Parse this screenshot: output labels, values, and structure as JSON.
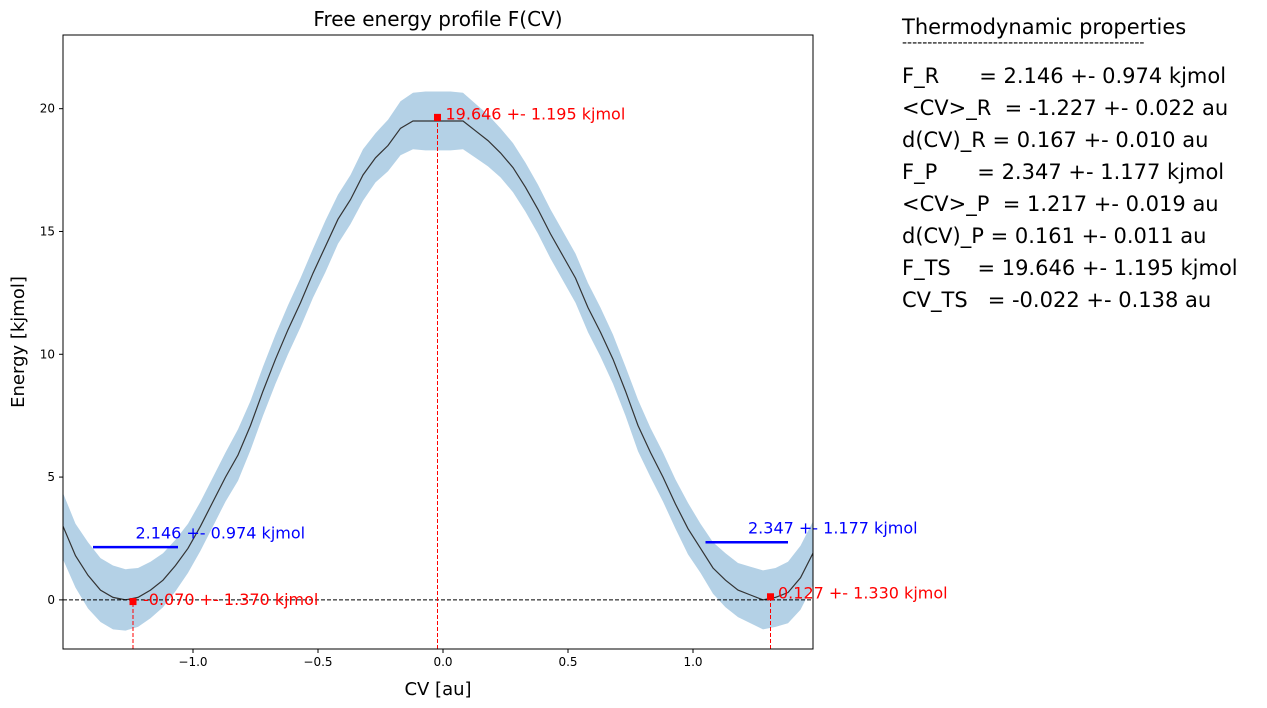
{
  "chart_data": {
    "type": "line",
    "title": "Free energy profile F(CV)",
    "xlabel": "CV [au]",
    "ylabel": "Energy [kjmol]",
    "xlim": [
      -1.52,
      1.48
    ],
    "ylim": [
      -2.0,
      23.0
    ],
    "xticks": [
      -1.0,
      -0.5,
      0.0,
      0.5,
      1.0
    ],
    "xtick_labels": [
      "−1.0",
      "−0.5",
      "0.0",
      "0.5",
      "1.0"
    ],
    "yticks": [
      0,
      5,
      10,
      15,
      20
    ],
    "ytick_labels": [
      "0",
      "5",
      "10",
      "15",
      "20"
    ],
    "grid": false,
    "series": [
      {
        "name": "F(CV)",
        "color": "#333333",
        "x": [
          -1.52,
          -1.47,
          -1.42,
          -1.37,
          -1.32,
          -1.27,
          -1.22,
          -1.17,
          -1.12,
          -1.07,
          -1.02,
          -0.97,
          -0.92,
          -0.87,
          -0.82,
          -0.77,
          -0.72,
          -0.67,
          -0.62,
          -0.57,
          -0.52,
          -0.47,
          -0.42,
          -0.37,
          -0.32,
          -0.27,
          -0.22,
          -0.17,
          -0.12,
          -0.07,
          -0.02,
          0.03,
          0.08,
          0.13,
          0.18,
          0.23,
          0.28,
          0.33,
          0.38,
          0.43,
          0.48,
          0.53,
          0.58,
          0.63,
          0.68,
          0.73,
          0.78,
          0.83,
          0.88,
          0.93,
          0.98,
          1.03,
          1.08,
          1.13,
          1.18,
          1.23,
          1.28,
          1.33,
          1.38,
          1.43,
          1.48
        ],
        "y": [
          3.0,
          1.8,
          1.0,
          0.4,
          0.1,
          0.0,
          0.1,
          0.4,
          0.8,
          1.4,
          2.1,
          3.0,
          4.0,
          5.0,
          5.9,
          7.1,
          8.5,
          9.8,
          11.0,
          12.1,
          13.3,
          14.4,
          15.5,
          16.3,
          17.3,
          18.0,
          18.5,
          19.2,
          19.5,
          19.5,
          19.5,
          19.5,
          19.5,
          19.1,
          18.7,
          18.2,
          17.6,
          16.8,
          15.9,
          14.9,
          14.0,
          13.1,
          11.9,
          10.9,
          9.8,
          8.5,
          7.1,
          6.0,
          5.0,
          3.9,
          2.9,
          2.1,
          1.3,
          0.8,
          0.4,
          0.2,
          0.0,
          0.1,
          0.3,
          0.9,
          1.9
        ],
        "band_halfwidth": [
          1.35,
          1.3,
          1.35,
          1.3,
          1.3,
          1.25,
          1.2,
          1.15,
          1.1,
          1.05,
          1.0,
          1.0,
          1.0,
          1.0,
          1.05,
          1.0,
          1.0,
          1.0,
          1.0,
          1.0,
          1.0,
          1.05,
          1.0,
          1.0,
          1.05,
          1.0,
          1.05,
          1.1,
          1.15,
          1.2,
          1.2,
          1.2,
          1.15,
          1.1,
          1.05,
          1.0,
          1.0,
          1.0,
          1.0,
          1.0,
          1.0,
          1.0,
          1.0,
          1.0,
          1.0,
          1.0,
          1.05,
          1.0,
          1.0,
          1.0,
          1.05,
          1.0,
          1.05,
          1.1,
          1.1,
          1.15,
          1.2,
          1.2,
          1.25,
          1.3,
          1.3
        ],
        "band_color": "#b4d1e6"
      }
    ],
    "reference_lines": [
      {
        "name": "zero-baseline",
        "orientation": "horizontal",
        "y": 0.0,
        "color": "#000000",
        "style": "dashed"
      },
      {
        "name": "reactant-minimum-vline",
        "orientation": "vertical",
        "x": -1.24,
        "y_to": 0.0,
        "color": "#ff0000",
        "style": "dashed"
      },
      {
        "name": "transition-state-vline",
        "orientation": "vertical",
        "x": -0.022,
        "y_to": 19.646,
        "color": "#ff0000",
        "style": "dashed"
      },
      {
        "name": "product-minimum-vline",
        "orientation": "vertical",
        "x": 1.31,
        "y_to": 0.127,
        "color": "#ff0000",
        "style": "dashed"
      }
    ],
    "free_energy_levels": [
      {
        "name": "F_R-level",
        "x_range": [
          -1.4,
          -1.06
        ],
        "y": 2.146,
        "color": "#0000ff",
        "label": "2.146 +- 0.974 kjmol",
        "label_x": -1.23,
        "label_y": 2.5
      },
      {
        "name": "F_P-level",
        "x_range": [
          1.05,
          1.38
        ],
        "y": 2.347,
        "color": "#0000ff",
        "label": "2.347 +- 1.177 kjmol",
        "label_x": 1.22,
        "label_y": 2.7
      }
    ],
    "points": [
      {
        "name": "reactant-minimum-marker",
        "x": -1.24,
        "y": -0.07,
        "color": "#ff0000",
        "label": "-0.070 +- 1.370 kjmol",
        "label_x": -1.2,
        "label_y": -0.2
      },
      {
        "name": "transition-state-marker",
        "x": -0.022,
        "y": 19.646,
        "color": "#ff0000",
        "label": "19.646 +- 1.195 kjmol",
        "label_x": 0.01,
        "label_y": 19.55
      },
      {
        "name": "product-minimum-marker",
        "x": 1.31,
        "y": 0.127,
        "color": "#ff0000",
        "label": "0.127 +- 1.330 kjmol",
        "label_x": 1.34,
        "label_y": 0.05
      }
    ]
  },
  "properties": {
    "title": "Thermodynamic properties",
    "rule": "------------------------------------------------",
    "lines": [
      "F_R      = 2.146 +- 0.974 kjmol",
      "<CV>_R  = -1.227 +- 0.022 au",
      "d(CV)_R = 0.167 +- 0.010 au",
      "F_P      = 2.347 +- 1.177 kjmol",
      "<CV>_P  = 1.217 +- 0.019 au",
      "d(CV)_P = 0.161 +- 0.011 au",
      "F_TS    = 19.646 +- 1.195 kjmol",
      "CV_TS   = -0.022 +- 0.138 au"
    ]
  }
}
